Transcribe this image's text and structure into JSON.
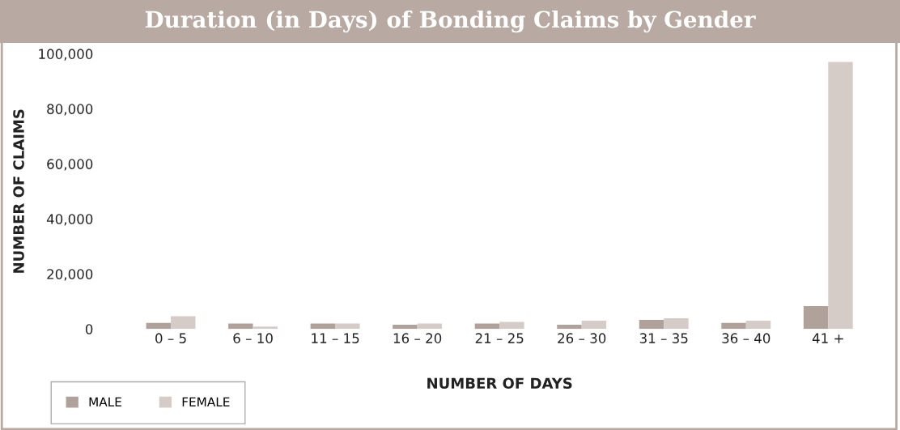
{
  "chart_data": {
    "type": "bar",
    "title": "Duration (in Days) of Bonding Claims by Gender",
    "xlabel": "NUMBER OF DAYS",
    "ylabel": "NUMBER OF CLAIMS",
    "categories": [
      "0 – 5",
      "6 – 10",
      "11 – 15",
      "16 – 20",
      "21 – 25",
      "26 – 30",
      "31 – 35",
      "36 – 40",
      "41 +"
    ],
    "series": [
      {
        "name": "MALE",
        "color": "#b0a29a",
        "values": [
          2200,
          2000,
          2000,
          1500,
          2000,
          1500,
          3300,
          2200,
          8300
        ]
      },
      {
        "name": "FEMALE",
        "color": "#d6ccc7",
        "values": [
          4600,
          900,
          2000,
          2000,
          2600,
          3000,
          3900,
          3000,
          97000
        ]
      }
    ],
    "ylim": [
      0,
      100000
    ],
    "yticks": [
      0,
      {
        "value": 20000,
        "label": "20,000"
      },
      {
        "value": 40000,
        "label": "40,000"
      },
      {
        "value": 60000,
        "label": "60,000"
      },
      {
        "value": 80000,
        "label": "80,000"
      },
      {
        "value": 100000,
        "label": "100,000"
      }
    ],
    "grid": false,
    "legend": "bottom left"
  }
}
